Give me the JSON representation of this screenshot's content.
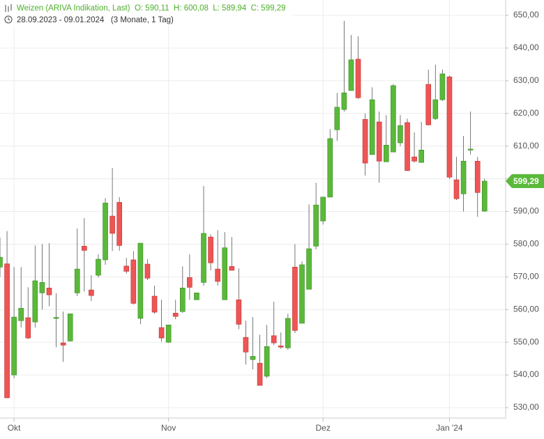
{
  "header": {
    "line1": "Weizen (ARIVA Indikation, Last)  O: 590,11  H: 600,08  L: 589,94  C: 599,29",
    "line2": "28.09.2023 - 09.01.2024   (3 Monate, 1 Tag)"
  },
  "chart_data": {
    "type": "candlestick",
    "categories": [
      null,
      null,
      null,
      null,
      null,
      null,
      null,
      null,
      null,
      null,
      null,
      null,
      null,
      null,
      null,
      null,
      null,
      null,
      null,
      null,
      null,
      null,
      null,
      null,
      null,
      null,
      null,
      null,
      null,
      null,
      null,
      null,
      null,
      null,
      null,
      null,
      null,
      null,
      null,
      null,
      null,
      null,
      null,
      null,
      null,
      null,
      null,
      null,
      null,
      null,
      null,
      null,
      null,
      null,
      null,
      null,
      null,
      null,
      null,
      null,
      null,
      null,
      null,
      null,
      null,
      null,
      null,
      null,
      null,
      null
    ],
    "open": [
      573,
      574,
      540,
      556.6,
      557.5,
      556.2,
      565.1,
      566.6,
      557.3,
      549.8,
      550.4,
      565.1,
      579.4,
      566,
      570.5,
      575.2,
      588.6,
      592.8,
      573.3,
      575.2,
      557.3,
      573.9,
      564.1,
      554.5,
      550,
      558.9,
      559.4,
      569.8,
      563,
      568.3,
      582.2,
      572.4,
      563,
      573.2,
      563,
      551.5,
      544.7,
      543.6,
      539.6,
      552,
      548.9,
      548.3,
      573,
      555.8,
      566.2,
      579.4,
      587.1,
      594.4,
      615,
      621.2,
      627,
      636.6,
      618.2,
      607.4,
      617.4,
      605.2,
      608.2,
      611,
      617.2,
      606.7,
      605,
      628.9,
      618.4,
      624.2,
      631.2,
      599.7,
      595.4,
      608.9,
      605.4,
      590.11
    ],
    "high": [
      582,
      584,
      573,
      573,
      566.8,
      579.6,
      580,
      580.3,
      565,
      559.4,
      558.7,
      584.8,
      588,
      570.5,
      576.9,
      594.1,
      603.3,
      594.4,
      575.8,
      577.9,
      580.3,
      575.4,
      567.3,
      563,
      555.3,
      563,
      573.2,
      576.9,
      565.1,
      597.8,
      583,
      584.3,
      583.7,
      582.2,
      572.6,
      556.6,
      557.7,
      552.3,
      555.3,
      562.4,
      553,
      558.7,
      580,
      574.7,
      592.2,
      598.8,
      594.4,
      615.2,
      626.3,
      648.3,
      644,
      643.6,
      620,
      628,
      620.6,
      619.5,
      629,
      619.5,
      618.4,
      614.2,
      617.4,
      633.4,
      634.9,
      633.4,
      631.6,
      606.7,
      613.1,
      620.6,
      606.7,
      600.08
    ],
    "low": [
      570,
      533,
      539,
      554.5,
      551,
      554.5,
      560,
      561,
      548.5,
      544,
      550.2,
      564.1,
      565.5,
      562.6,
      569.8,
      573.7,
      577.9,
      578,
      571,
      561.5,
      555.5,
      569,
      558.7,
      550.2,
      549.8,
      557,
      559,
      563,
      563,
      567.3,
      572,
      567.3,
      563,
      572,
      554,
      543.2,
      541.7,
      536.8,
      539,
      549.1,
      548,
      547.7,
      552.8,
      555.8,
      566.2,
      578.4,
      586,
      594.4,
      611.6,
      620.6,
      627,
      624.4,
      601,
      607.4,
      598.8,
      605.2,
      608.2,
      610,
      602.5,
      605,
      605,
      616.3,
      618,
      623.8,
      600,
      593.5,
      590,
      607.4,
      588.4,
      589.94
    ],
    "close": [
      576,
      533,
      557.7,
      560.4,
      551.3,
      568.8,
      568.3,
      564.5,
      557.6,
      549.1,
      558.7,
      572.4,
      578.1,
      564.3,
      575.4,
      592.6,
      583.3,
      579.6,
      571.7,
      561.9,
      580.3,
      569.6,
      559.2,
      551.3,
      555.3,
      557.9,
      566.6,
      566.8,
      565.1,
      583.3,
      574.3,
      568.6,
      578.9,
      572,
      555.5,
      547,
      545.7,
      536.8,
      548.7,
      549.8,
      548.5,
      557.3,
      553.6,
      573.7,
      578.6,
      592,
      594.4,
      612.3,
      621.9,
      626.3,
      636.4,
      624.8,
      604.8,
      624.2,
      605.4,
      610.3,
      628.5,
      616.3,
      602.5,
      605.4,
      608.8,
      616.5,
      624.2,
      632.1,
      600.5,
      593.9,
      605.4,
      609.1,
      595.8,
      599.29
    ],
    "up_color": "#5ab93a",
    "down_color": "#ee5555",
    "xlim": [
      0,
      72
    ],
    "xticks": [
      {
        "value": 2,
        "label": "Okt"
      },
      {
        "value": 24,
        "label": "Nov"
      },
      {
        "value": 46,
        "label": "Dez"
      },
      {
        "value": 64,
        "label": "Jan '24"
      }
    ],
    "ylim": [
      526.8,
      654.7
    ],
    "yticks": [
      {
        "value": 530,
        "label": "530,00"
      },
      {
        "value": 540,
        "label": "540,00"
      },
      {
        "value": 550,
        "label": "550,00"
      },
      {
        "value": 560,
        "label": "560,00"
      },
      {
        "value": 570,
        "label": "570,00"
      },
      {
        "value": 580,
        "label": "580,00"
      },
      {
        "value": 590,
        "label": "590,00"
      },
      {
        "value": 600,
        "label": "600,00"
      },
      {
        "value": 610,
        "label": "610,00"
      },
      {
        "value": 620,
        "label": "620,00"
      },
      {
        "value": 630,
        "label": "630,00"
      },
      {
        "value": 640,
        "label": "640,00"
      },
      {
        "value": 650,
        "label": "650,00"
      }
    ],
    "grid": true,
    "last": {
      "value": 599.29,
      "label": "599,29"
    }
  }
}
